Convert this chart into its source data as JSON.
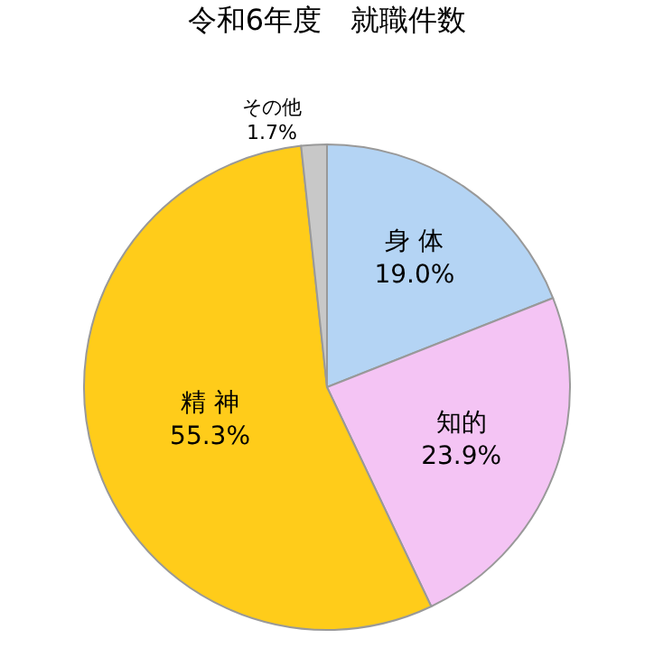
{
  "chart_data": {
    "type": "pie",
    "title": "令和6年度　就職件数",
    "categories": [
      "身 体",
      "知的",
      "精 神",
      "その他"
    ],
    "values": [
      19.0,
      23.9,
      55.3,
      1.7
    ],
    "value_labels": [
      "19.0%",
      "23.9%",
      "55.3%",
      "1.7%"
    ],
    "colors": [
      "#b4d4f4",
      "#f4c4f4",
      "#ffcc1a",
      "#c8c8c8"
    ],
    "legend": false
  }
}
